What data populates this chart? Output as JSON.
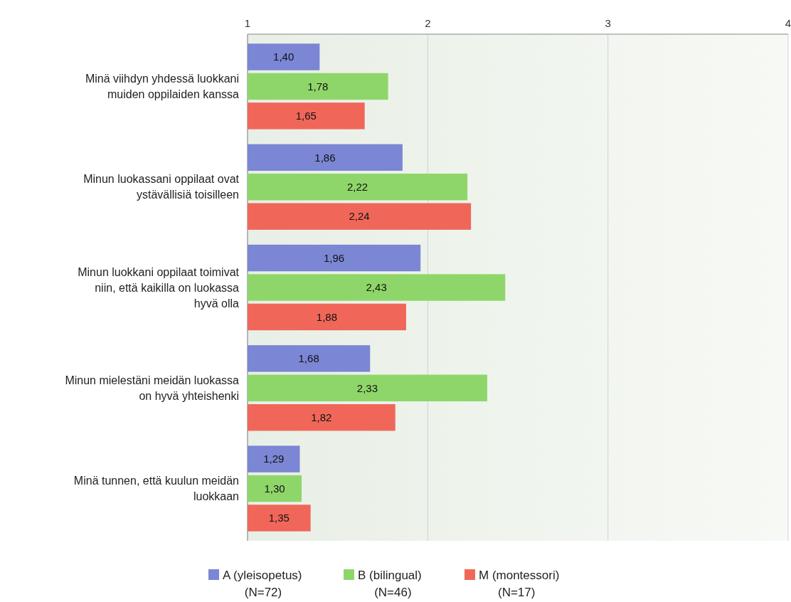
{
  "chart_data": {
    "type": "bar",
    "orientation": "horizontal",
    "categories": [
      "Minä viihdyn yhdessä luokkani muiden oppilaiden kanssa",
      "Minun luokassani oppilaat ovat ystävällisiä toisilleen",
      "Minun luokkani oppilaat toimivat niin, että kaikilla on luokassa hyvä olla",
      "Minun mielestäni meidän luokassa on hyvä yhteishenki",
      "Minä tunnen, että kuulun meidän luokkaan"
    ],
    "series": [
      {
        "name": "A (yleisopetus)\n(N=72)",
        "color": "#7b86d4",
        "values": [
          1.4,
          1.86,
          1.96,
          1.68,
          1.29
        ],
        "value_labels": [
          "1,40",
          "1,86",
          "1,96",
          "1,68",
          "1,29"
        ]
      },
      {
        "name": "B (bilingual)\n(N=46)",
        "color": "#8fd66a",
        "values": [
          1.78,
          2.22,
          2.43,
          2.33,
          1.3
        ],
        "value_labels": [
          "1,78",
          "2,22",
          "2,43",
          "2,33",
          "1,30"
        ]
      },
      {
        "name": "M (montessori)\n(N=17)",
        "color": "#f0675a",
        "values": [
          1.65,
          2.24,
          1.88,
          1.82,
          1.35
        ],
        "value_labels": [
          "1,65",
          "2,24",
          "1,88",
          "1,82",
          "1,35"
        ]
      }
    ],
    "xlim": [
      1,
      4
    ],
    "xticks": [
      1,
      2,
      3,
      4
    ],
    "grid": "x",
    "legend": "bottom"
  }
}
